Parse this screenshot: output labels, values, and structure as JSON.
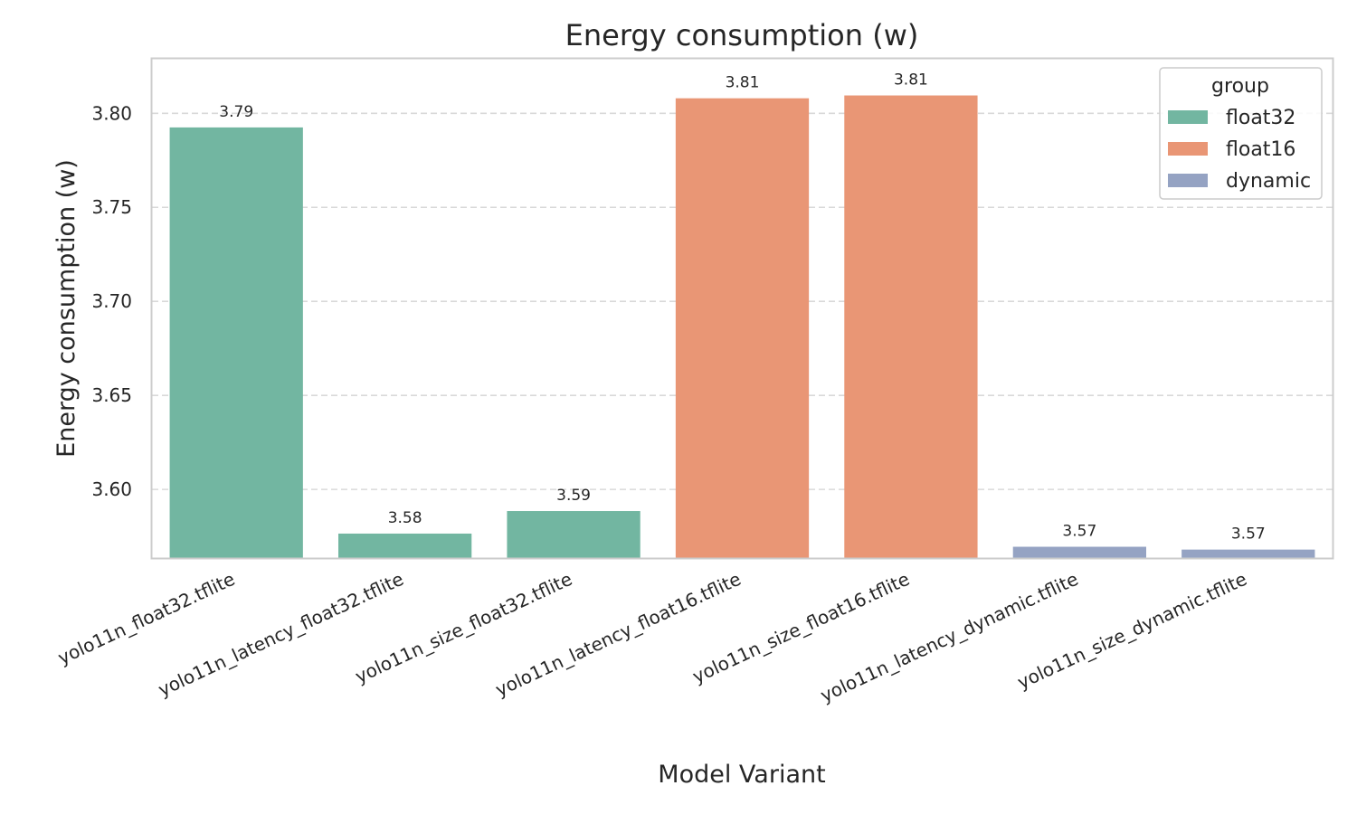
{
  "chart_data": {
    "type": "bar",
    "title": "Energy consumption (w)",
    "xlabel": "Model Variant",
    "ylabel": "Energy consumption (w)",
    "ylim": [
      3.5635,
      3.829
    ],
    "yticks": [
      3.6,
      3.65,
      3.7,
      3.75,
      3.8
    ],
    "grid": "horizontal dashed",
    "legend_placement": "top-right",
    "legend_title": "group",
    "groups": [
      {
        "name": "float32",
        "color": "#72b6a1"
      },
      {
        "name": "float16",
        "color": "#e99675"
      },
      {
        "name": "dynamic",
        "color": "#95a3c3"
      }
    ],
    "categories": [
      "yolo11n_float32.tflite",
      "yolo11n_latency_float32.tflite",
      "yolo11n_size_float32.tflite",
      "yolo11n_latency_float16.tflite",
      "yolo11n_size_float16.tflite",
      "yolo11n_latency_dynamic.tflite",
      "yolo11n_size_dynamic.tflite"
    ],
    "values": [
      3.7925,
      3.5765,
      3.5885,
      3.808,
      3.8095,
      3.5695,
      3.568
    ],
    "value_labels": [
      "3.79",
      "3.58",
      "3.59",
      "3.81",
      "3.81",
      "3.57",
      "3.57"
    ],
    "bar_group": [
      "float32",
      "float32",
      "float32",
      "float16",
      "float16",
      "dynamic",
      "dynamic"
    ]
  }
}
